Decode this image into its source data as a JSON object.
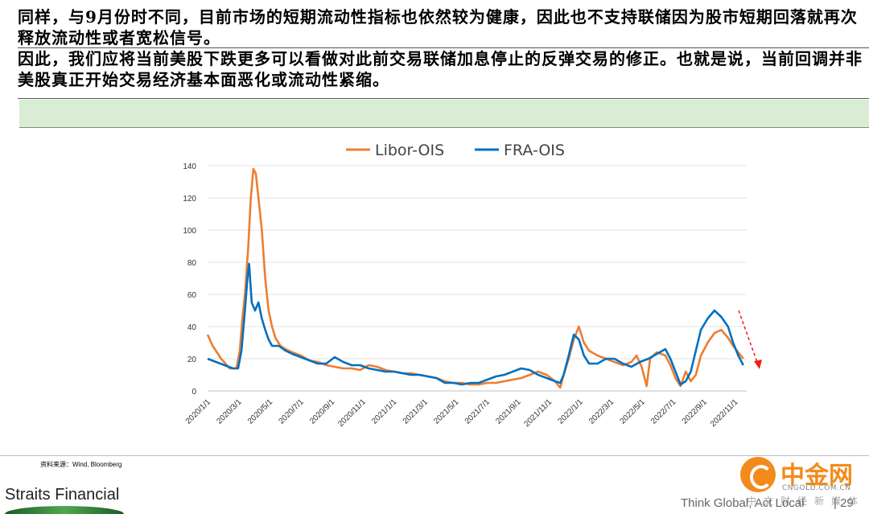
{
  "text": {
    "para1": "同样，与9月份时不同，目前市场的短期流动性指标也依然较为健康，因此也不支持联储因为股市短期回落就再次释放流动性或者宽松信号。",
    "para2": "因此，我们应将当前美股下跌更多可以看做对此前交易联储加息停止的反弹交易的修正。也就是说，当前回调并非美股真正开始交易经济基本面恶化或流动性紧缩。"
  },
  "source": "资料来源：Wind, Bloomberg",
  "footer": {
    "brand": "Straits Financial",
    "tagline": "Think Global, Act Local",
    "page": "| 29"
  },
  "watermark": {
    "name": "中金网",
    "url": "CNGOLD.COM.CN",
    "sub": "中文财经新媒体"
  },
  "colors": {
    "libor": "#ED7D31",
    "fra": "#0070C0",
    "arrow": "#e8221b",
    "band": "#d9ecd4"
  },
  "chart_data": {
    "type": "line",
    "title": "",
    "xlabel": "",
    "ylabel": "",
    "ylim": [
      0,
      140
    ],
    "yticks": [
      0,
      20,
      40,
      60,
      80,
      100,
      120,
      140
    ],
    "xticks": [
      "2020/1/1",
      "2020/3/1",
      "2020/5/1",
      "2020/7/1",
      "2020/9/1",
      "2020/11/1",
      "2021/1/1",
      "2021/3/1",
      "2021/5/1",
      "2021/7/1",
      "2021/9/1",
      "2021/11/1",
      "2022/1/1",
      "2022/3/1",
      "2022/5/1",
      "2022/7/1",
      "2022/9/1",
      "2022/11/1"
    ],
    "legend_position": "top",
    "grid": "horizontal",
    "annotation": "red dashed downward arrow at series end",
    "series": [
      {
        "name": "Libor-OIS",
        "color": "#ED7D31",
        "points": [
          [
            0,
            35
          ],
          [
            0.3,
            28
          ],
          [
            0.8,
            20
          ],
          [
            1.3,
            14
          ],
          [
            1.7,
            14
          ],
          [
            1.9,
            25
          ],
          [
            2.05,
            45
          ],
          [
            2.2,
            60
          ],
          [
            2.4,
            90
          ],
          [
            2.55,
            120
          ],
          [
            2.7,
            138
          ],
          [
            2.85,
            135
          ],
          [
            3.0,
            120
          ],
          [
            3.2,
            100
          ],
          [
            3.4,
            70
          ],
          [
            3.6,
            50
          ],
          [
            3.8,
            40
          ],
          [
            4.0,
            33
          ],
          [
            4.3,
            28
          ],
          [
            4.6,
            26
          ],
          [
            5.0,
            24
          ],
          [
            5.5,
            22
          ],
          [
            6.0,
            19
          ],
          [
            6.5,
            18
          ],
          [
            7.0,
            16
          ],
          [
            7.5,
            15
          ],
          [
            8.0,
            14
          ],
          [
            8.5,
            14
          ],
          [
            9.0,
            13
          ],
          [
            9.5,
            16
          ],
          [
            10.0,
            15
          ],
          [
            10.5,
            13
          ],
          [
            11.0,
            12
          ],
          [
            11.5,
            11
          ],
          [
            12.0,
            11
          ],
          [
            12.5,
            10
          ],
          [
            13.0,
            9
          ],
          [
            13.5,
            8
          ],
          [
            14.0,
            6
          ],
          [
            14.5,
            5
          ],
          [
            15.0,
            5
          ],
          [
            15.5,
            4
          ],
          [
            16.0,
            4
          ],
          [
            16.5,
            5
          ],
          [
            17.0,
            5
          ],
          [
            17.5,
            6
          ],
          [
            18.0,
            7
          ],
          [
            18.5,
            8
          ],
          [
            19.0,
            10
          ],
          [
            19.5,
            12
          ],
          [
            20.0,
            10
          ],
          [
            20.5,
            6
          ],
          [
            20.8,
            2
          ],
          [
            21.0,
            10
          ],
          [
            21.3,
            20
          ],
          [
            21.6,
            32
          ],
          [
            21.9,
            40
          ],
          [
            22.2,
            30
          ],
          [
            22.5,
            25
          ],
          [
            23.0,
            22
          ],
          [
            23.5,
            20
          ],
          [
            24.0,
            18
          ],
          [
            24.5,
            16
          ],
          [
            25.0,
            18
          ],
          [
            25.3,
            22
          ],
          [
            25.6,
            15
          ],
          [
            25.9,
            3
          ],
          [
            26.1,
            20
          ],
          [
            26.5,
            24
          ],
          [
            27.0,
            22
          ],
          [
            27.3,
            16
          ],
          [
            27.6,
            8
          ],
          [
            27.9,
            3
          ],
          [
            28.2,
            12
          ],
          [
            28.5,
            6
          ],
          [
            28.8,
            10
          ],
          [
            29.1,
            22
          ],
          [
            29.5,
            30
          ],
          [
            29.9,
            36
          ],
          [
            30.3,
            38
          ],
          [
            30.7,
            33
          ],
          [
            31.0,
            28
          ],
          [
            31.3,
            24
          ],
          [
            31.6,
            20
          ]
        ]
      },
      {
        "name": "FRA-OIS",
        "color": "#0070C0",
        "points": [
          [
            0,
            20
          ],
          [
            0.5,
            18
          ],
          [
            1.0,
            16
          ],
          [
            1.5,
            14
          ],
          [
            1.8,
            14
          ],
          [
            2.0,
            25
          ],
          [
            2.2,
            50
          ],
          [
            2.35,
            70
          ],
          [
            2.45,
            79
          ],
          [
            2.6,
            55
          ],
          [
            2.8,
            50
          ],
          [
            3.0,
            55
          ],
          [
            3.2,
            45
          ],
          [
            3.4,
            38
          ],
          [
            3.6,
            32
          ],
          [
            3.8,
            28
          ],
          [
            4.2,
            28
          ],
          [
            4.6,
            25
          ],
          [
            5.0,
            23
          ],
          [
            5.5,
            21
          ],
          [
            6.0,
            19
          ],
          [
            6.5,
            17
          ],
          [
            7.0,
            17
          ],
          [
            7.5,
            21
          ],
          [
            8.0,
            18
          ],
          [
            8.5,
            16
          ],
          [
            9.0,
            16
          ],
          [
            9.5,
            14
          ],
          [
            10.0,
            13
          ],
          [
            10.5,
            12
          ],
          [
            11.0,
            12
          ],
          [
            11.5,
            11
          ],
          [
            12.0,
            10
          ],
          [
            12.5,
            10
          ],
          [
            13.0,
            9
          ],
          [
            13.5,
            8
          ],
          [
            14.0,
            5
          ],
          [
            14.5,
            5
          ],
          [
            15.0,
            4
          ],
          [
            15.5,
            5
          ],
          [
            16.0,
            5
          ],
          [
            16.5,
            7
          ],
          [
            17.0,
            9
          ],
          [
            17.5,
            10
          ],
          [
            18.0,
            12
          ],
          [
            18.5,
            14
          ],
          [
            19.0,
            13
          ],
          [
            19.5,
            10
          ],
          [
            20.0,
            8
          ],
          [
            20.5,
            6
          ],
          [
            20.8,
            5
          ],
          [
            21.0,
            10
          ],
          [
            21.3,
            22
          ],
          [
            21.6,
            35
          ],
          [
            21.9,
            32
          ],
          [
            22.2,
            22
          ],
          [
            22.5,
            17
          ],
          [
            23.0,
            17
          ],
          [
            23.5,
            20
          ],
          [
            24.0,
            20
          ],
          [
            24.5,
            17
          ],
          [
            25.0,
            15
          ],
          [
            25.5,
            18
          ],
          [
            26.0,
            20
          ],
          [
            26.5,
            23
          ],
          [
            27.0,
            26
          ],
          [
            27.3,
            20
          ],
          [
            27.6,
            12
          ],
          [
            27.9,
            4
          ],
          [
            28.2,
            6
          ],
          [
            28.5,
            12
          ],
          [
            28.8,
            25
          ],
          [
            29.1,
            38
          ],
          [
            29.5,
            45
          ],
          [
            29.9,
            50
          ],
          [
            30.3,
            46
          ],
          [
            30.7,
            40
          ],
          [
            31.0,
            30
          ],
          [
            31.3,
            22
          ],
          [
            31.6,
            16
          ]
        ]
      }
    ]
  }
}
